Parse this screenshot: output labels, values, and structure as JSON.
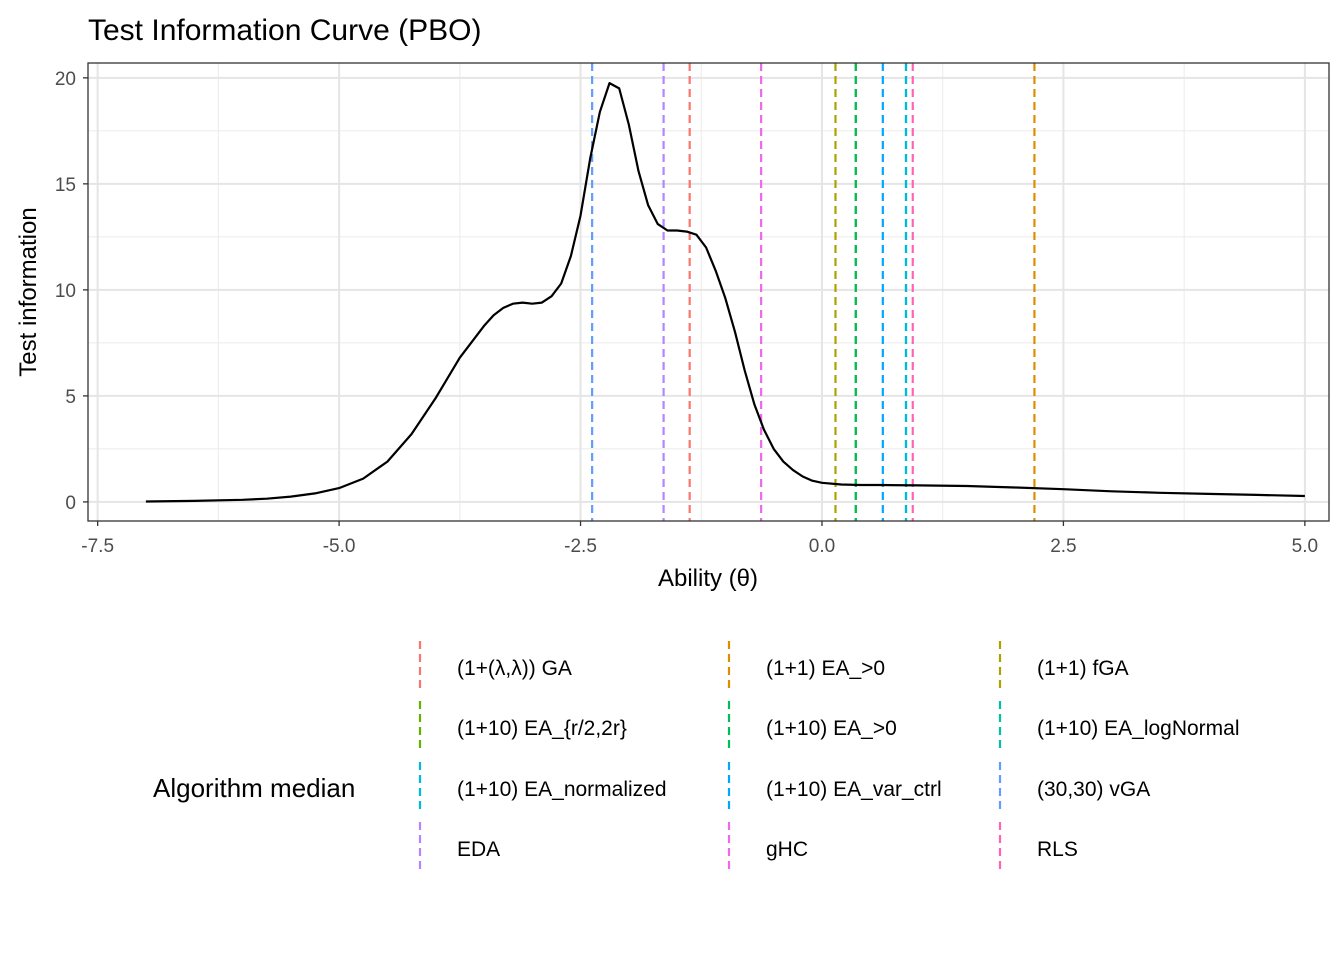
{
  "chart_data": {
    "type": "line",
    "title": "Test Information Curve (PBO)",
    "xlabel": "Ability (θ)",
    "ylabel": "Test information",
    "xlim": [
      -7.6,
      5.25
    ],
    "ylim": [
      -0.9,
      20.7
    ],
    "x_ticks": [
      -7.5,
      -5.0,
      -2.5,
      0.0,
      2.5,
      5.0
    ],
    "x_tick_labels": [
      "-7.5",
      "-5.0",
      "-2.5",
      "0.0",
      "2.5",
      "5.0"
    ],
    "y_ticks": [
      0,
      5,
      10,
      15,
      20
    ],
    "y_tick_labels": [
      "0",
      "5",
      "10",
      "15",
      "20"
    ],
    "grid": true,
    "series": [
      {
        "color": "#000000",
        "x": [
          -7.0,
          -6.5,
          -6.0,
          -5.75,
          -5.5,
          -5.25,
          -5.0,
          -4.75,
          -4.5,
          -4.25,
          -4.0,
          -3.75,
          -3.5,
          -3.4,
          -3.3,
          -3.2,
          -3.1,
          -3.0,
          -2.9,
          -2.8,
          -2.7,
          -2.6,
          -2.5,
          -2.4,
          -2.3,
          -2.2,
          -2.1,
          -2.0,
          -1.9,
          -1.8,
          -1.7,
          -1.6,
          -1.5,
          -1.4,
          -1.3,
          -1.2,
          -1.1,
          -1.0,
          -0.9,
          -0.8,
          -0.7,
          -0.6,
          -0.5,
          -0.4,
          -0.3,
          -0.2,
          -0.1,
          0.0,
          0.2,
          0.4,
          0.6,
          1.0,
          1.5,
          2.0,
          2.5,
          3.0,
          3.5,
          4.0,
          4.5,
          5.0
        ],
        "y": [
          0.02,
          0.05,
          0.1,
          0.15,
          0.25,
          0.4,
          0.65,
          1.1,
          1.9,
          3.2,
          4.9,
          6.8,
          8.3,
          8.8,
          9.15,
          9.35,
          9.4,
          9.35,
          9.4,
          9.7,
          10.3,
          11.6,
          13.5,
          16.2,
          18.4,
          19.75,
          19.5,
          17.8,
          15.6,
          14.0,
          13.1,
          12.8,
          12.8,
          12.75,
          12.6,
          12.0,
          10.9,
          9.6,
          8.0,
          6.2,
          4.6,
          3.4,
          2.5,
          1.9,
          1.5,
          1.2,
          1.0,
          0.9,
          0.82,
          0.8,
          0.8,
          0.78,
          0.75,
          0.68,
          0.6,
          0.5,
          0.43,
          0.38,
          0.33,
          0.28
        ]
      }
    ],
    "vlines": [
      {
        "name": "(1+(λ,λ)) GA",
        "x": -1.37,
        "color": "#F8766D"
      },
      {
        "name": "(1+1) EA_>0",
        "x": 2.2,
        "color": "#DB8E00"
      },
      {
        "name": "(1+1) fGA",
        "x": 0.14,
        "color": "#AEA200"
      },
      {
        "name": "(1+10) EA_{r/2,2r}",
        "x": 0.35,
        "color": "#64B200"
      },
      {
        "name": "(1+10) EA_>0",
        "x": 0.35,
        "color": "#00BD5C"
      },
      {
        "name": "(1+10) EA_logNormal",
        "x": 0.87,
        "color": "#00C1A7"
      },
      {
        "name": "(1+10) EA_normalized",
        "x": 0.87,
        "color": "#00BADE"
      },
      {
        "name": "(1+10) EA_var_ctrl",
        "x": 0.63,
        "color": "#00A6FF"
      },
      {
        "name": "(30,30) vGA",
        "x": -2.38,
        "color": "#619CFF"
      },
      {
        "name": "EDA",
        "x": -1.64,
        "color": "#B385FF"
      },
      {
        "name": "gHC",
        "x": -0.63,
        "color": "#EF67EB"
      },
      {
        "name": "RLS",
        "x": 0.94,
        "color": "#FF63B6"
      }
    ],
    "legend": {
      "title": "Algorithm median",
      "placement": "bottom",
      "columns": 3
    }
  }
}
